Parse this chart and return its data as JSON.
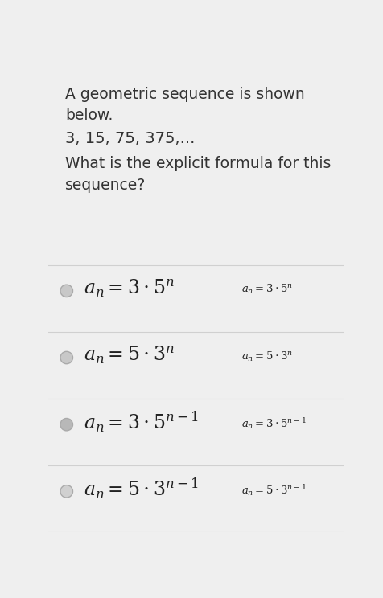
{
  "background_color": "#efefef",
  "title_text": "A geometric sequence is shown\nbelow.",
  "sequence_text": "3, 15, 75, 375,...",
  "question_text": "What is the explicit formula for this\nsequence?",
  "options": [
    {
      "circle_color": "#c8c8c8"
    },
    {
      "circle_color": "#c8c8c8"
    },
    {
      "circle_color": "#b8b8b8"
    },
    {
      "circle_color": "#d0d0d0"
    }
  ],
  "large_formulas": [
    "$a_n = 3 \\cdot 5^n$",
    "$a_n = 5 \\cdot 3^n$",
    "$a_n = 3 \\cdot 5^{n-1}$",
    "$a_n = 5 \\cdot 3^{n-1}$"
  ],
  "small_formulas": [
    "$a_n = 3 \\cdot 5^n$",
    "$a_n = 5 \\cdot 3^n$",
    "$a_n = 3 \\cdot 5^{n-1}$",
    "$a_n = 5 \\cdot 3^{n-1}$"
  ],
  "divider_color": "#d0d0d0",
  "text_color": "#333333",
  "formula_color": "#222222"
}
